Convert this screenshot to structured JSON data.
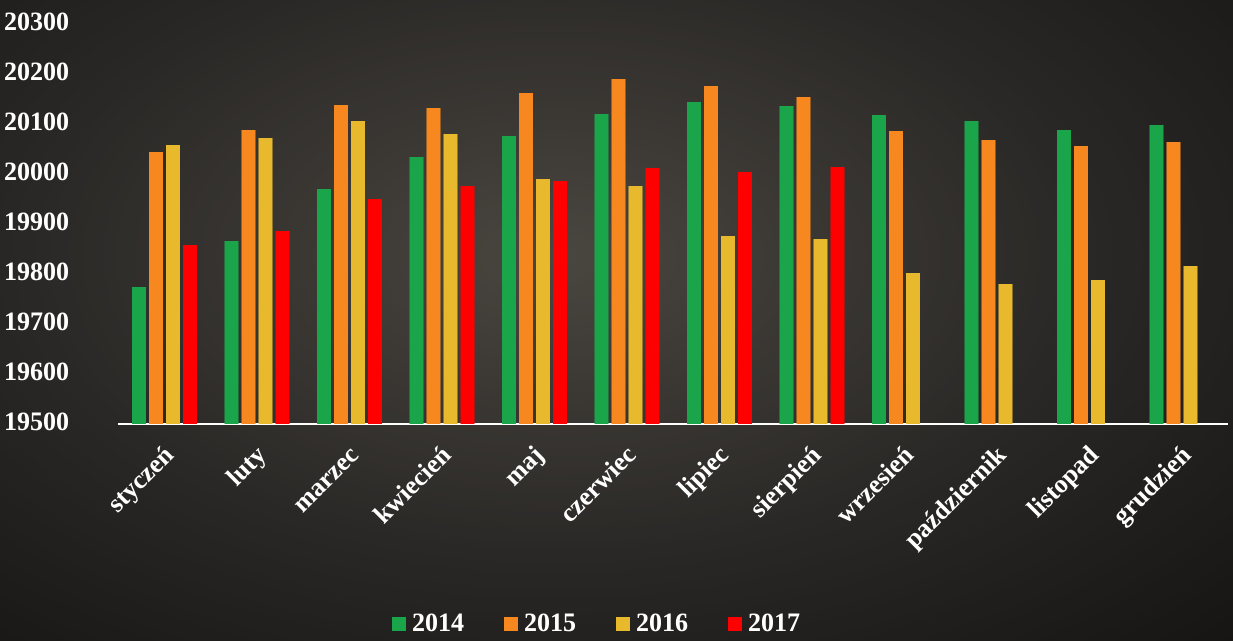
{
  "chart_data": {
    "type": "bar",
    "categories": [
      "styczeń",
      "luty",
      "marzec",
      "kwiecień",
      "maj",
      "czerwiec",
      "lipiec",
      "sierpień",
      "wrzesień",
      "październik",
      "listopad",
      "grudzień"
    ],
    "series": [
      {
        "name": "2014",
        "color": "#1aa54a",
        "values": [
          19774,
          19866,
          19970,
          20034,
          20076,
          20120,
          20144,
          20136,
          20118,
          20106,
          20088,
          20098
        ]
      },
      {
        "name": "2015",
        "color": "#f7871f",
        "values": [
          20044,
          20088,
          20138,
          20132,
          20162,
          20190,
          20176,
          20154,
          20086,
          20068,
          20056,
          20064
        ]
      },
      {
        "name": "2016",
        "color": "#e8b92c",
        "values": [
          20058,
          20072,
          20106,
          20080,
          19990,
          19976,
          19876,
          19870,
          19802,
          19780,
          19788,
          19816
        ]
      },
      {
        "name": "2017",
        "color": "#ff0000",
        "values": [
          19858,
          19886,
          19950,
          19976,
          19986,
          20012,
          20004,
          20014,
          null,
          null,
          null,
          null
        ]
      }
    ],
    "ylim": [
      19500,
      20300
    ],
    "yticks": [
      19500,
      19600,
      19700,
      19800,
      19900,
      20000,
      20100,
      20200,
      20300
    ]
  }
}
